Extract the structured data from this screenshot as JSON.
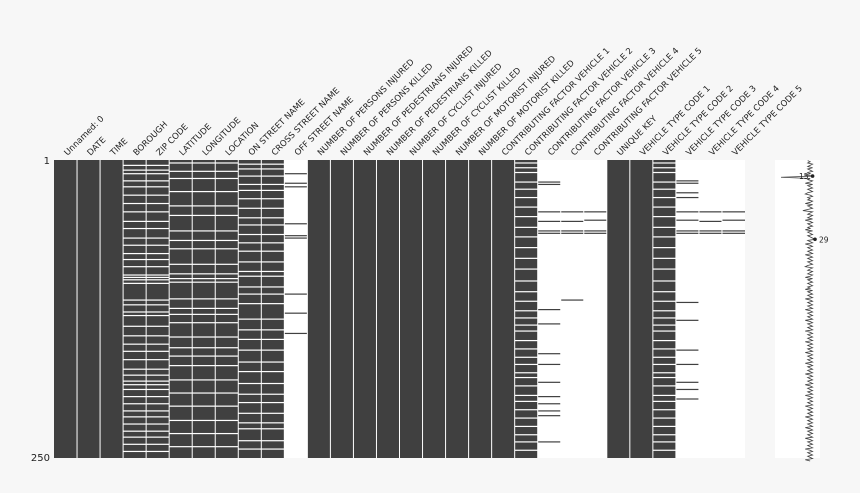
{
  "chart_data": {
    "type": "heatmap",
    "title": "",
    "row_count": 250,
    "y_tick_labels": [
      "1",
      "250"
    ],
    "columns": [
      {
        "name": "Unnamed: 0",
        "missing_rows": []
      },
      {
        "name": "DATE",
        "missing_rows": []
      },
      {
        "name": "TIME",
        "missing_rows": []
      },
      {
        "name": "BOROUGH",
        "missing_rows": [
          5,
          9,
          12,
          18,
          23,
          30,
          37,
          44,
          52,
          58,
          66,
          72,
          79,
          84,
          90,
          97,
          99,
          101,
          104,
          118,
          122,
          128,
          131,
          140,
          148,
          155,
          161,
          168,
          176,
          181,
          186,
          189,
          193,
          199,
          205,
          211,
          216,
          222,
          228,
          233,
          239,
          245
        ]
      },
      {
        "name": "ZIP CODE",
        "missing_rows": [
          5,
          9,
          12,
          18,
          23,
          30,
          37,
          44,
          52,
          58,
          66,
          72,
          79,
          84,
          90,
          97,
          99,
          101,
          104,
          118,
          122,
          128,
          131,
          140,
          148,
          155,
          161,
          168,
          176,
          181,
          186,
          189,
          193,
          199,
          205,
          211,
          216,
          222,
          228,
          233,
          239,
          245
        ]
      },
      {
        "name": "LATITUDE",
        "missing_rows": [
          3,
          10,
          16,
          27,
          39,
          47,
          60,
          68,
          75,
          88,
          96,
          100,
          103,
          117,
          125,
          130,
          137,
          149,
          158,
          165,
          173,
          185,
          196,
          207,
          219,
          230,
          241
        ]
      },
      {
        "name": "LONGITUDE",
        "missing_rows": [
          3,
          10,
          16,
          27,
          39,
          47,
          60,
          68,
          75,
          88,
          96,
          100,
          103,
          117,
          125,
          130,
          137,
          149,
          158,
          165,
          173,
          185,
          196,
          207,
          219,
          230,
          241
        ]
      },
      {
        "name": "LOCATION",
        "missing_rows": [
          3,
          10,
          16,
          27,
          39,
          47,
          60,
          68,
          75,
          88,
          96,
          100,
          103,
          117,
          125,
          130,
          137,
          149,
          158,
          165,
          173,
          185,
          196,
          207,
          219,
          230,
          241
        ]
      },
      {
        "name": "ON STREET NAME",
        "missing_rows": [
          4,
          8,
          14,
          21,
          26,
          33,
          41,
          49,
          55,
          63,
          70,
          77,
          86,
          94,
          98,
          107,
          113,
          121,
          134,
          143,
          151,
          160,
          170,
          178,
          188,
          197,
          204,
          213,
          221,
          226,
          236,
          243
        ]
      },
      {
        "name": "CROSS STREET NAME",
        "missing_rows": [
          4,
          8,
          14,
          21,
          26,
          33,
          41,
          49,
          55,
          63,
          70,
          77,
          86,
          94,
          98,
          107,
          113,
          121,
          134,
          143,
          151,
          160,
          170,
          178,
          188,
          197,
          204,
          213,
          221,
          226,
          236,
          243
        ]
      },
      {
        "name": "OFF STREET NAME",
        "missing_rows": [],
        "present_rows": [
          12,
          20,
          23,
          54,
          64,
          66,
          113,
          129,
          146
        ]
      },
      {
        "name": "NUMBER OF PERSONS INJURED",
        "missing_rows": []
      },
      {
        "name": "NUMBER OF PERSONS KILLED",
        "missing_rows": []
      },
      {
        "name": "NUMBER OF PEDESTRIANS INJURED",
        "missing_rows": []
      },
      {
        "name": "NUMBER OF PEDESTRIANS KILLED",
        "missing_rows": []
      },
      {
        "name": "NUMBER OF CYCLIST INJURED",
        "missing_rows": []
      },
      {
        "name": "NUMBER OF CYCLIST KILLED",
        "missing_rows": []
      },
      {
        "name": "NUMBER OF MOTORIST INJURED",
        "missing_rows": []
      },
      {
        "name": "NUMBER OF MOTORIST KILLED",
        "missing_rows": []
      },
      {
        "name": "CONTRIBUTING FACTOR VEHICLE 1",
        "missing_rows": [],
        "partial": {
          "present_from": 1,
          "present_to": 250
        }
      },
      {
        "name": "CONTRIBUTING FACTOR VEHICLE 2",
        "missing_rows": [
          3,
          7,
          11,
          19,
          25,
          32,
          40,
          48,
          57,
          65,
          74,
          83,
          92,
          102,
          111,
          119,
          127,
          133,
          139,
          144,
          152,
          159,
          166,
          172,
          179,
          183,
          190,
          198,
          203,
          210,
          217,
          224,
          231,
          237,
          244
        ]
      },
      {
        "name": "CONTRIBUTING FACTOR VEHICLE 3",
        "missing_rows": [],
        "present_rows": [
          19,
          21,
          44,
          52,
          60,
          62,
          126,
          138,
          163,
          172,
          187,
          199,
          205,
          211,
          215,
          237
        ]
      },
      {
        "name": "CONTRIBUTING FACTOR VEHICLE 4",
        "missing_rows": [],
        "present_rows": [
          44,
          52,
          60,
          62,
          118
        ]
      },
      {
        "name": "CONTRIBUTING FACTOR VEHICLE 5",
        "missing_rows": [],
        "present_rows": [
          44,
          51,
          60,
          62
        ]
      },
      {
        "name": "UNIQUE KEY",
        "missing_rows": []
      },
      {
        "name": "VEHICLE TYPE CODE 1",
        "missing_rows": []
      },
      {
        "name": "VEHICLE TYPE CODE 2",
        "missing_rows": [
          3,
          7,
          11,
          19,
          25,
          32,
          40,
          48,
          57,
          65,
          74,
          83,
          92,
          102,
          111,
          119,
          127,
          133,
          139,
          144,
          152,
          159,
          166,
          172,
          179,
          183,
          190,
          198,
          203,
          210,
          217,
          224,
          231,
          237,
          244
        ]
      },
      {
        "name": "VEHICLE TYPE CODE 3",
        "missing_rows": [],
        "present_rows": [
          18,
          20,
          28,
          32,
          44,
          51,
          60,
          62,
          120,
          135,
          160,
          172,
          187,
          193,
          201
        ]
      },
      {
        "name": "VEHICLE TYPE CODE 4",
        "missing_rows": [],
        "present_rows": [
          44,
          52,
          60,
          62
        ]
      },
      {
        "name": "VEHICLE TYPE CODE 5",
        "missing_rows": [],
        "present_rows": [
          44,
          51,
          60,
          62
        ]
      }
    ],
    "sparkline": {
      "min_label": "15",
      "max_label": "29",
      "min_row": 14,
      "max_row": 67,
      "values": [
        26,
        27,
        26,
        28,
        27,
        26,
        28,
        26,
        27,
        28,
        26,
        27,
        25,
        28,
        15,
        27,
        26,
        28,
        27,
        25,
        28,
        26,
        27,
        28,
        26,
        27,
        28,
        26,
        25,
        27,
        28,
        26,
        27,
        26,
        28,
        27,
        25,
        28,
        26,
        27,
        28,
        26,
        24,
        28,
        27,
        26,
        28,
        27,
        26,
        28,
        25,
        27,
        28,
        26,
        27,
        28,
        26,
        27,
        25,
        28,
        26,
        27,
        28,
        26,
        27,
        28,
        29,
        26,
        27,
        28,
        25,
        27,
        28,
        26,
        27,
        28,
        26,
        27,
        28,
        25,
        27,
        28,
        26,
        27,
        28,
        26,
        27,
        28,
        26,
        25,
        28,
        27,
        26,
        28,
        27,
        26,
        28,
        27,
        25,
        28,
        26,
        27,
        28,
        26,
        27,
        28,
        26,
        27,
        25,
        28,
        26,
        27,
        28,
        26,
        27,
        28,
        25,
        27,
        28,
        26,
        27,
        28,
        26,
        27,
        28,
        25,
        27,
        28,
        26,
        27,
        28,
        26,
        27,
        28,
        25,
        27,
        28,
        26,
        27,
        28,
        26,
        27,
        28,
        25,
        27,
        28,
        26,
        27,
        28,
        26,
        27,
        28,
        25,
        27,
        28,
        26,
        27,
        28,
        26,
        27,
        28,
        25,
        27,
        28,
        26,
        27,
        28,
        26,
        27,
        28,
        25,
        27,
        28,
        26,
        27,
        28,
        26,
        27,
        28,
        25,
        27,
        28,
        26,
        27,
        28,
        26,
        27,
        28,
        25,
        27,
        28,
        26,
        27,
        28,
        26,
        27,
        28,
        25,
        27,
        28,
        26,
        27,
        28,
        26,
        27,
        28,
        25,
        27,
        28,
        26,
        27,
        28,
        26,
        27,
        28,
        25,
        27,
        28,
        26,
        27,
        28,
        26,
        27,
        28,
        25,
        27,
        28,
        26,
        27,
        28,
        26,
        27,
        28,
        25,
        27,
        28,
        26,
        27,
        28,
        26,
        27,
        28,
        25,
        27,
        28,
        26,
        27,
        28,
        26,
        27,
        28,
        25,
        27
      ]
    },
    "colors": {
      "filled": "#404040",
      "missing": "#ffffff",
      "background": "#f7f7f7",
      "text": "#222222"
    }
  }
}
